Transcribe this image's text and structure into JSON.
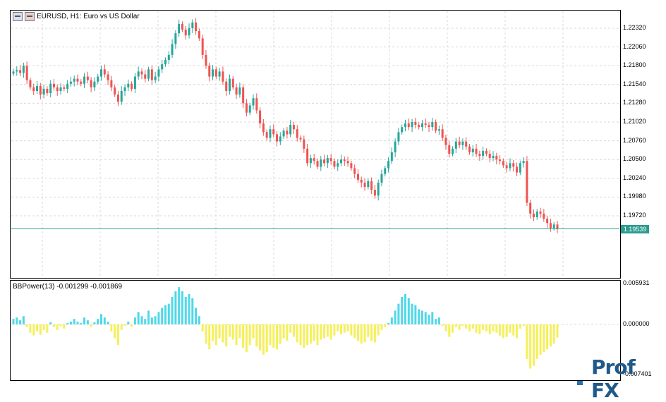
{
  "chart": {
    "symbol_title": "EURUSD, H1:  Euro vs US Dollar",
    "current_price": "1.19539",
    "price_ticks": [
      "1.22320",
      "1.22060",
      "1.21800",
      "1.21540",
      "1.21280",
      "1.21020",
      "1.20760",
      "1.20500",
      "1.20240",
      "1.19980",
      "1.19720"
    ],
    "indicator_title": "BBPower(13) -0.001299 -0.001869",
    "indicator_ticks": [
      "0.005931",
      "0.000000",
      "-0.007401"
    ],
    "colors": {
      "bull": "#26a69a",
      "bear": "#ef5350",
      "grid": "#d8d8d8",
      "hist_pos": "#4fd8e8",
      "hist_neg": "#f5f05a",
      "price_line": "#2b9b8f"
    }
  },
  "chart_data": [
    {
      "type": "candlestick",
      "title": "EURUSD, H1:  Euro vs US Dollar",
      "ylim": [
        1.1952,
        1.225
      ],
      "closes": [
        1.2172,
        1.2174,
        1.217,
        1.218,
        1.216,
        1.215,
        1.2145,
        1.2152,
        1.214,
        1.2148,
        1.2142,
        1.2155,
        1.215,
        1.2145,
        1.215,
        1.2148,
        1.2155,
        1.2158,
        1.2162,
        1.2158,
        1.2155,
        1.2165,
        1.216,
        1.215,
        1.2158,
        1.2165,
        1.2175,
        1.2168,
        1.216,
        1.215,
        1.214,
        1.213,
        1.2145,
        1.215,
        1.2155,
        1.2148,
        1.2165,
        1.2172,
        1.2168,
        1.2162,
        1.2175,
        1.216,
        1.2165,
        1.2175,
        1.2182,
        1.2188,
        1.2195,
        1.221,
        1.2225,
        1.2238,
        1.223,
        1.2222,
        1.2232,
        1.224,
        1.2228,
        1.2218,
        1.2195,
        1.218,
        1.2165,
        1.2175,
        1.2165,
        1.2172,
        1.2158,
        1.2145,
        1.2162,
        1.215,
        1.214,
        1.215,
        1.2128,
        1.2115,
        1.2125,
        1.2135,
        1.2118,
        1.21,
        1.2088,
        1.208,
        1.2092,
        1.2085,
        1.2075,
        1.2082,
        1.209,
        1.2085,
        1.2098,
        1.2092,
        1.208,
        1.2078,
        1.2065,
        1.2045,
        1.2052,
        1.2048,
        1.204,
        1.205,
        1.2045,
        1.2052,
        1.2048,
        1.204,
        1.2045,
        1.205,
        1.2048,
        1.2045,
        1.2038,
        1.203,
        1.2022,
        1.2018,
        1.2012,
        1.202,
        1.2008,
        1.2,
        1.2018,
        1.203,
        1.2038,
        1.2048,
        1.206,
        1.2075,
        1.2088,
        1.2095,
        1.21,
        1.2095,
        1.2102,
        1.2098,
        1.2095,
        1.21,
        1.2098,
        1.2095,
        1.2102,
        1.209,
        1.2092,
        1.208,
        1.207,
        1.2058,
        1.2065,
        1.2075,
        1.207,
        1.2075,
        1.2068,
        1.206,
        1.2065,
        1.2058,
        1.2055,
        1.2062,
        1.2058,
        1.2052,
        1.2055,
        1.205,
        1.2048,
        1.2042,
        1.2038,
        1.2045,
        1.204,
        1.2032,
        1.2045,
        1.2048,
        1.199,
        1.1975,
        1.197,
        1.1978,
        1.1975,
        1.1968,
        1.1962,
        1.1955,
        1.196,
        1.1954
      ]
    },
    {
      "type": "bar",
      "title": "BBPower(13) -0.001299 -0.001869",
      "ylim": [
        -0.0074,
        0.0059
      ],
      "values": [
        0.0008,
        0.001,
        0.0006,
        0.0012,
        -0.0004,
        -0.0012,
        -0.0016,
        -0.001,
        -0.0015,
        -0.0008,
        -0.0012,
        0.0003,
        -0.0004,
        -0.0008,
        -0.0003,
        -0.0006,
        0.0002,
        0.0004,
        0.0008,
        0.0004,
        0.0002,
        0.001,
        0.0006,
        -0.0004,
        0.0003,
        0.0008,
        0.0015,
        0.001,
        0.0004,
        -0.001,
        -0.002,
        -0.003,
        -0.0008,
        -0.0002,
        0.0004,
        -0.0004,
        0.001,
        0.0018,
        0.0012,
        0.0008,
        0.002,
        0.001,
        0.0012,
        0.0018,
        0.0024,
        0.0028,
        0.003,
        0.004,
        0.0048,
        0.0054,
        0.0048,
        0.004,
        0.0044,
        0.0038,
        0.0024,
        0.0012,
        -0.001,
        -0.0028,
        -0.0036,
        -0.0024,
        -0.003,
        -0.002,
        -0.0026,
        -0.0032,
        -0.0018,
        -0.0022,
        -0.003,
        -0.002,
        -0.0034,
        -0.004,
        -0.003,
        -0.002,
        -0.0032,
        -0.0038,
        -0.0044,
        -0.004,
        -0.003,
        -0.0034,
        -0.0036,
        -0.0028,
        -0.002,
        -0.0024,
        -0.0012,
        -0.0018,
        -0.0026,
        -0.003,
        -0.0034,
        -0.003,
        -0.0028,
        -0.0024,
        -0.003,
        -0.0022,
        -0.002,
        -0.0018,
        -0.0022,
        -0.0016,
        -0.001,
        -0.0014,
        -0.0012,
        -0.001,
        -0.0016,
        -0.002,
        -0.0024,
        -0.0028,
        -0.0026,
        -0.0018,
        -0.0024,
        -0.0026,
        -0.0016,
        -0.0008,
        -0.0004,
        0.0002,
        0.001,
        0.002,
        0.003,
        0.004,
        0.0044,
        0.0038,
        0.003,
        0.0028,
        0.0022,
        0.002,
        0.0018,
        0.0014,
        0.0018,
        0.0008,
        0.001,
        -0.0002,
        -0.001,
        -0.0018,
        -0.0012,
        -0.0004,
        -0.0008,
        -0.0002,
        -0.0006,
        -0.001,
        -0.0006,
        -0.0012,
        -0.0014,
        -0.0008,
        -0.001,
        -0.0014,
        -0.001,
        -0.0012,
        -0.0016,
        -0.002,
        -0.0018,
        -0.0012,
        -0.0016,
        -0.002,
        -0.0006,
        -0.0002,
        -0.005,
        -0.0064,
        -0.006,
        -0.005,
        -0.0044,
        -0.004,
        -0.0036,
        -0.0032,
        -0.0028,
        -0.0019
      ]
    }
  ],
  "logo": {
    "text": "Prof FX"
  }
}
